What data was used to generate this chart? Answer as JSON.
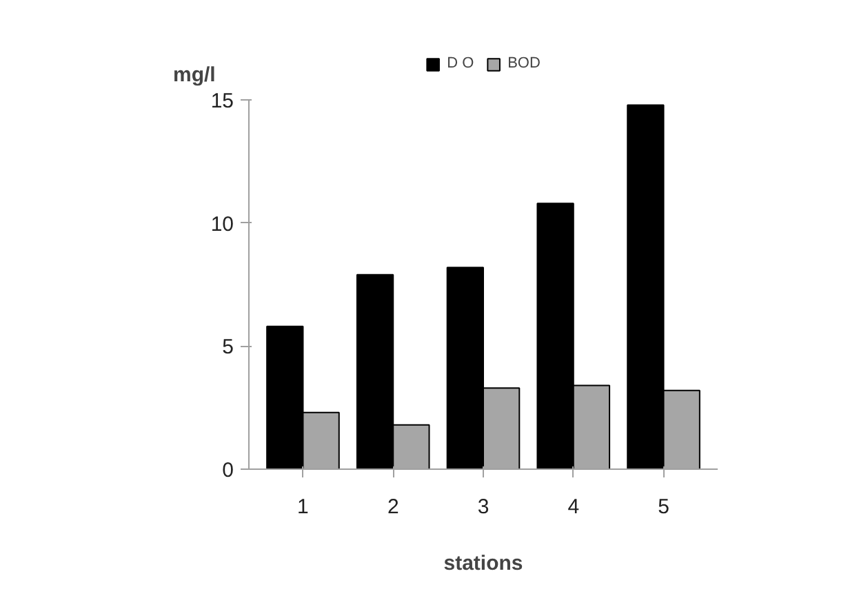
{
  "chart_data": {
    "type": "bar",
    "categories": [
      "1",
      "2",
      "3",
      "4",
      "5"
    ],
    "ylabel": "mg/l",
    "xlabel": "stations",
    "ylim": [
      0,
      15
    ],
    "yticks": [
      0,
      5,
      10,
      15
    ],
    "grid": false,
    "legend": "top",
    "series": [
      {
        "name": "D O",
        "color": "#000000",
        "values": [
          5.8,
          7.9,
          8.2,
          10.8,
          14.8
        ]
      },
      {
        "name": "BOD",
        "color": "#a6a6a6",
        "values": [
          2.3,
          1.8,
          3.3,
          3.4,
          3.2
        ]
      }
    ]
  }
}
